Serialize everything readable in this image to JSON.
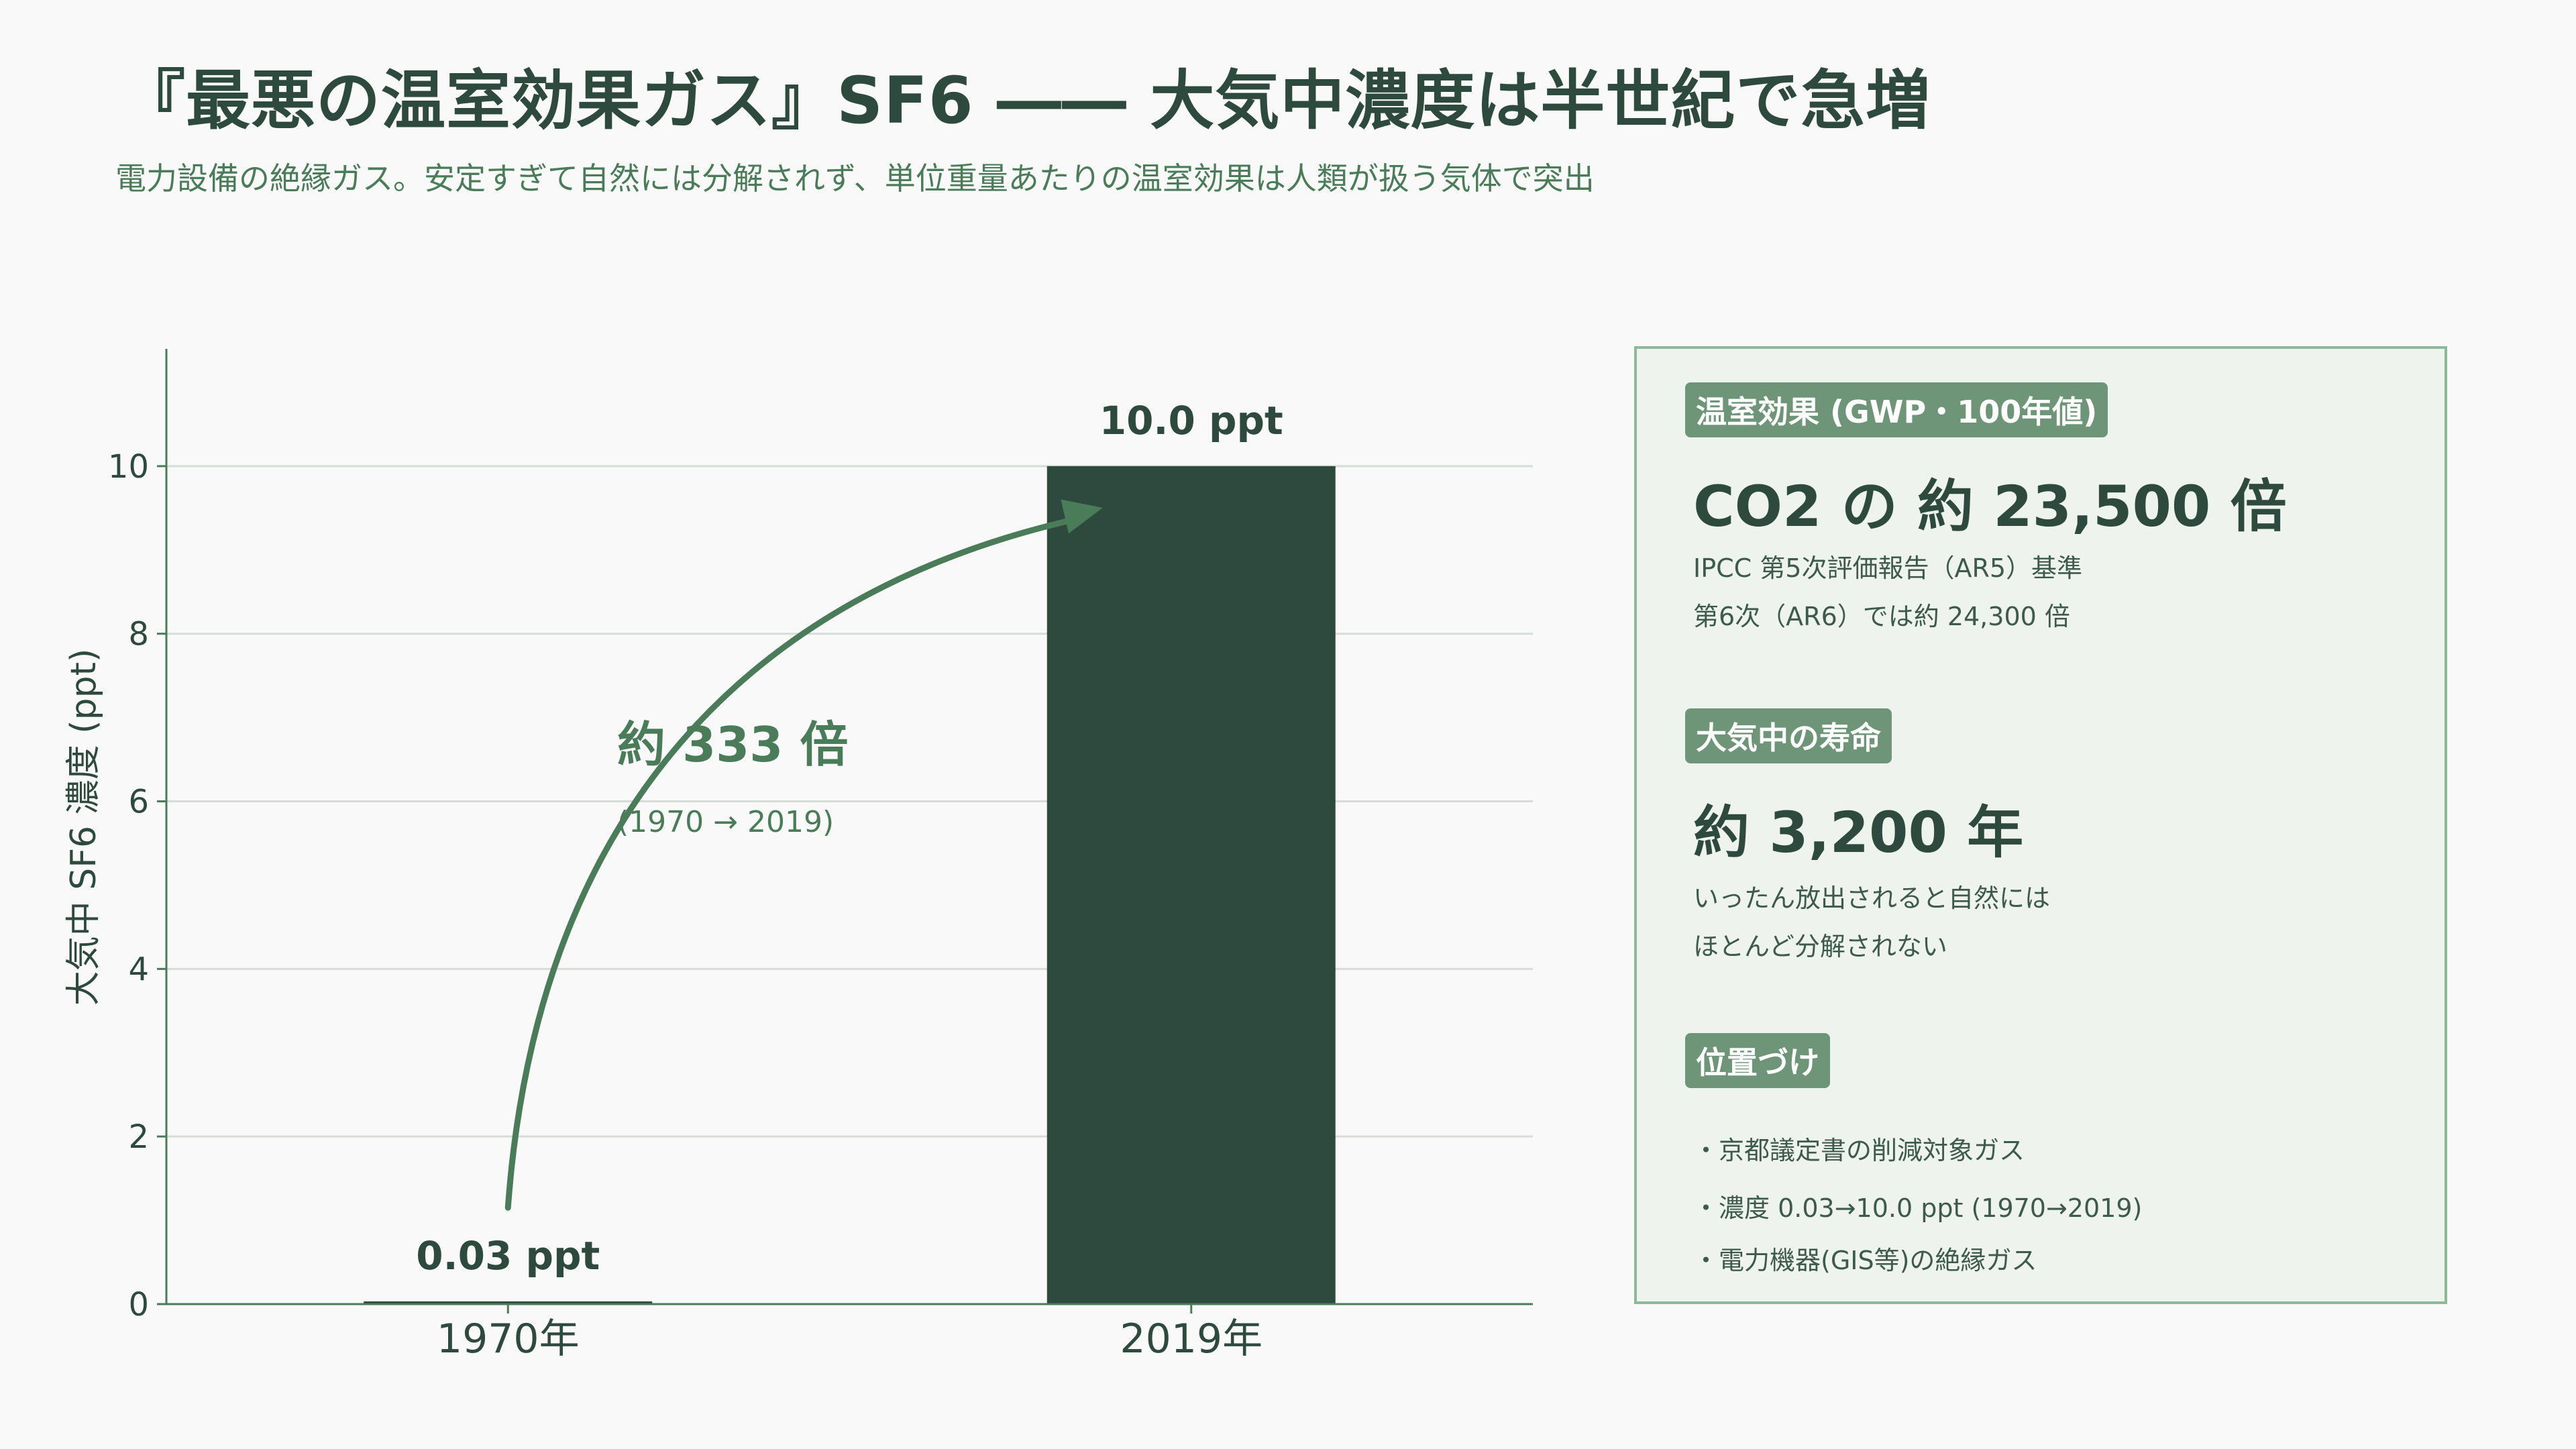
{
  "title": "『最悪の温室効果ガス』SF6 ―― 大気中濃度は半世紀で急増",
  "subtitle": "電力設備の絶縁ガス。安定すぎて自然には分解されず、単位重量あたりの温室効果は人類が扱う気体で突出",
  "chart_data": {
    "type": "bar",
    "categories": [
      "1970年",
      "2019年"
    ],
    "values": [
      0.03,
      10.0
    ],
    "value_labels": [
      "0.03 ppt",
      "10.0 ppt"
    ],
    "ylabel": "大気中 SF6 濃度 (ppt)",
    "ylim": [
      0,
      11.4
    ],
    "yticks": [
      0,
      2,
      4,
      6,
      8,
      10
    ],
    "grid": true,
    "colors": {
      "bar": "#2e4a3e",
      "axis": "#4a7c59",
      "arrow": "#4a7c59",
      "grid": "#d6ddd8"
    },
    "annotation": {
      "label": "約 333 倍",
      "sublabel": "(1970 → 2019)"
    }
  },
  "panel": {
    "gwp": {
      "tag": "温室効果 (GWP・100年値)",
      "value": "CO2 の 約 23,500 倍",
      "notes": [
        "IPCC 第5次評価報告（AR5）基準",
        "第6次（AR6）では約 24,300 倍"
      ]
    },
    "lifetime": {
      "tag": "大気中の寿命",
      "value": "約 3,200 年",
      "notes": [
        "いったん放出されると自然には",
        "ほとんど分解されない"
      ]
    },
    "position": {
      "tag": "位置づけ",
      "bullets": [
        "・京都議定書の削減対象ガス",
        "・濃度 0.03→10.0 ppt (1970→2019)",
        "・電力機器(GIS等)の絶縁ガス"
      ]
    }
  }
}
